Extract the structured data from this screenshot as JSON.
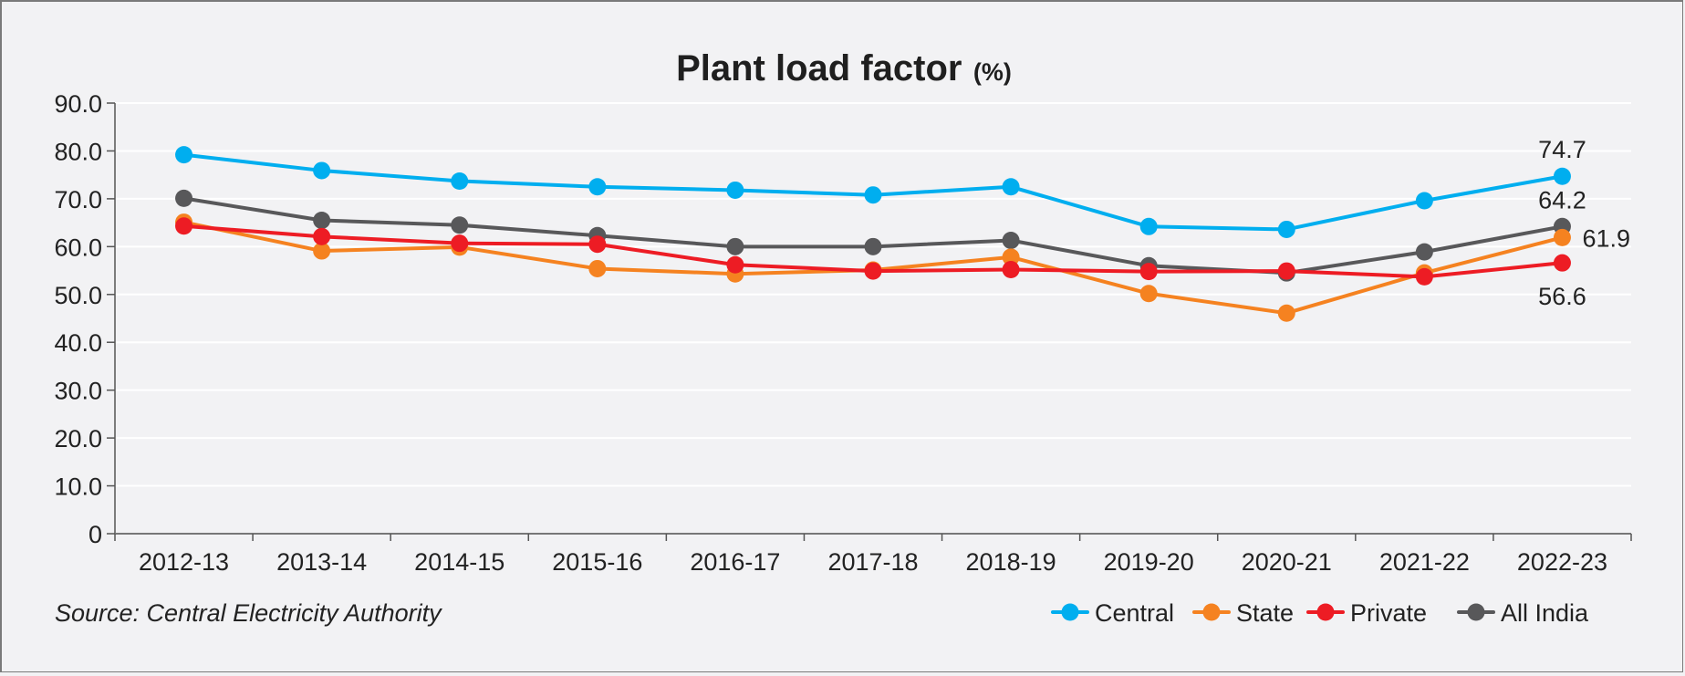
{
  "chart_data": {
    "type": "line",
    "title": "Plant load factor",
    "title_unit": "(%)",
    "xlabel": "",
    "ylabel": "",
    "categories": [
      "2012-13",
      "2013-14",
      "2014-15",
      "2015-16",
      "2016-17",
      "2017-18",
      "2018-19",
      "2019-20",
      "2020-21",
      "2021-22",
      "2022-23"
    ],
    "ylim": [
      0,
      90
    ],
    "yticks": [
      0,
      10,
      20,
      30,
      40,
      50,
      60,
      70,
      80,
      90
    ],
    "ytick_labels": [
      "0",
      "10.0",
      "20.0",
      "30.0",
      "40.0",
      "50.0",
      "60.0",
      "70.0",
      "80.0",
      "90.0"
    ],
    "grid": true,
    "legend_position": "bottom-right",
    "series": [
      {
        "name": "Central",
        "color": "#00aeef",
        "values": [
          79.2,
          75.9,
          73.7,
          72.5,
          71.8,
          70.8,
          72.5,
          64.2,
          63.6,
          69.6,
          74.7
        ]
      },
      {
        "name": "State",
        "color": "#f58220",
        "values": [
          65.1,
          59.1,
          59.9,
          55.4,
          54.3,
          55.1,
          57.8,
          50.2,
          46.1,
          54.5,
          61.9
        ]
      },
      {
        "name": "Private",
        "color": "#ed1c24",
        "values": [
          64.3,
          62.1,
          60.7,
          60.5,
          56.2,
          54.9,
          55.2,
          54.8,
          54.9,
          53.7,
          56.6
        ]
      },
      {
        "name": "All India",
        "color": "#58585a",
        "values": [
          70.1,
          65.5,
          64.5,
          62.3,
          60.0,
          60.0,
          61.3,
          56.0,
          54.5,
          58.9,
          64.2
        ]
      }
    ],
    "annotations": [
      {
        "series": "Central",
        "category": "2022-23",
        "text": "74.7",
        "placement": "above"
      },
      {
        "series": "All India",
        "category": "2022-23",
        "text": "64.2",
        "placement": "above"
      },
      {
        "series": "State",
        "category": "2022-23",
        "text": "61.9",
        "placement": "right"
      },
      {
        "series": "Private",
        "category": "2022-23",
        "text": "56.6",
        "placement": "below"
      }
    ],
    "source": "Source: Central Electricity Authority"
  }
}
